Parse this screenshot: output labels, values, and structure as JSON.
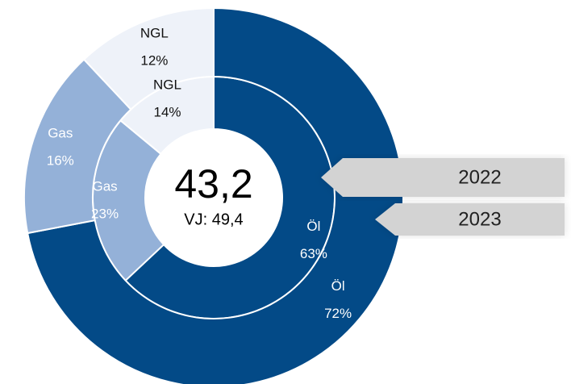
{
  "chart_data": {
    "type": "donut",
    "categories": [
      "Öl",
      "Gas",
      "NGL"
    ],
    "colors": [
      "#034a87",
      "#94b1d8",
      "#eef2f9"
    ],
    "label_colors": [
      "#ffffff",
      "#ffffff",
      "#111111"
    ],
    "series": [
      {
        "name": "2022",
        "values": [
          63,
          23,
          14
        ],
        "value_labels": [
          "63%",
          "23%",
          "14%"
        ]
      },
      {
        "name": "2023",
        "values": [
          72,
          16,
          12
        ],
        "value_labels": [
          "72%",
          "16%",
          "12%"
        ]
      }
    ],
    "center_value": "43,2",
    "center_label": "VJ: 49,4"
  }
}
